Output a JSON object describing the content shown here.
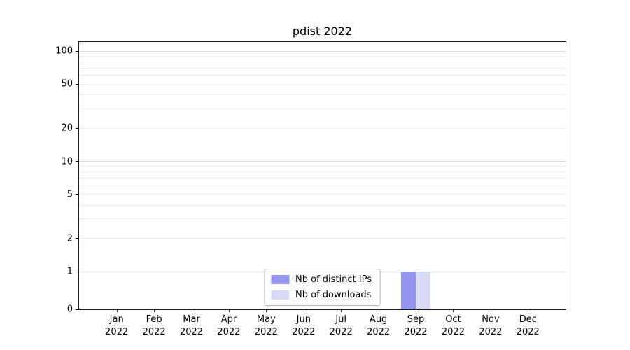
{
  "chart_data": {
    "type": "bar",
    "title": "pdist 2022",
    "xlabel": "",
    "ylabel": "",
    "year": "2022",
    "categories": [
      "Jan",
      "Feb",
      "Mar",
      "Apr",
      "May",
      "Jun",
      "Jul",
      "Aug",
      "Sep",
      "Oct",
      "Nov",
      "Dec"
    ],
    "series": [
      {
        "name": "Nb of distinct IPs",
        "color": "#9595ee",
        "values": [
          0,
          0,
          0,
          0,
          0,
          0,
          0,
          0,
          1,
          0,
          0,
          0
        ]
      },
      {
        "name": "Nb of downloads",
        "color": "#d9d9f8",
        "values": [
          0,
          0,
          0,
          0,
          0,
          0,
          0,
          0,
          1,
          0,
          0,
          0
        ]
      }
    ],
    "yscale": "symlog",
    "yticks": [
      0,
      1,
      2,
      5,
      10,
      20,
      50,
      100
    ],
    "ylim": [
      0,
      100
    ],
    "grid": "both",
    "legend_position": "lower center"
  },
  "colors": {
    "grid_minor": "#ececec",
    "grid_major": "#dcdcdc",
    "axis": "#1a1a1a",
    "background": "#ffffff"
  }
}
